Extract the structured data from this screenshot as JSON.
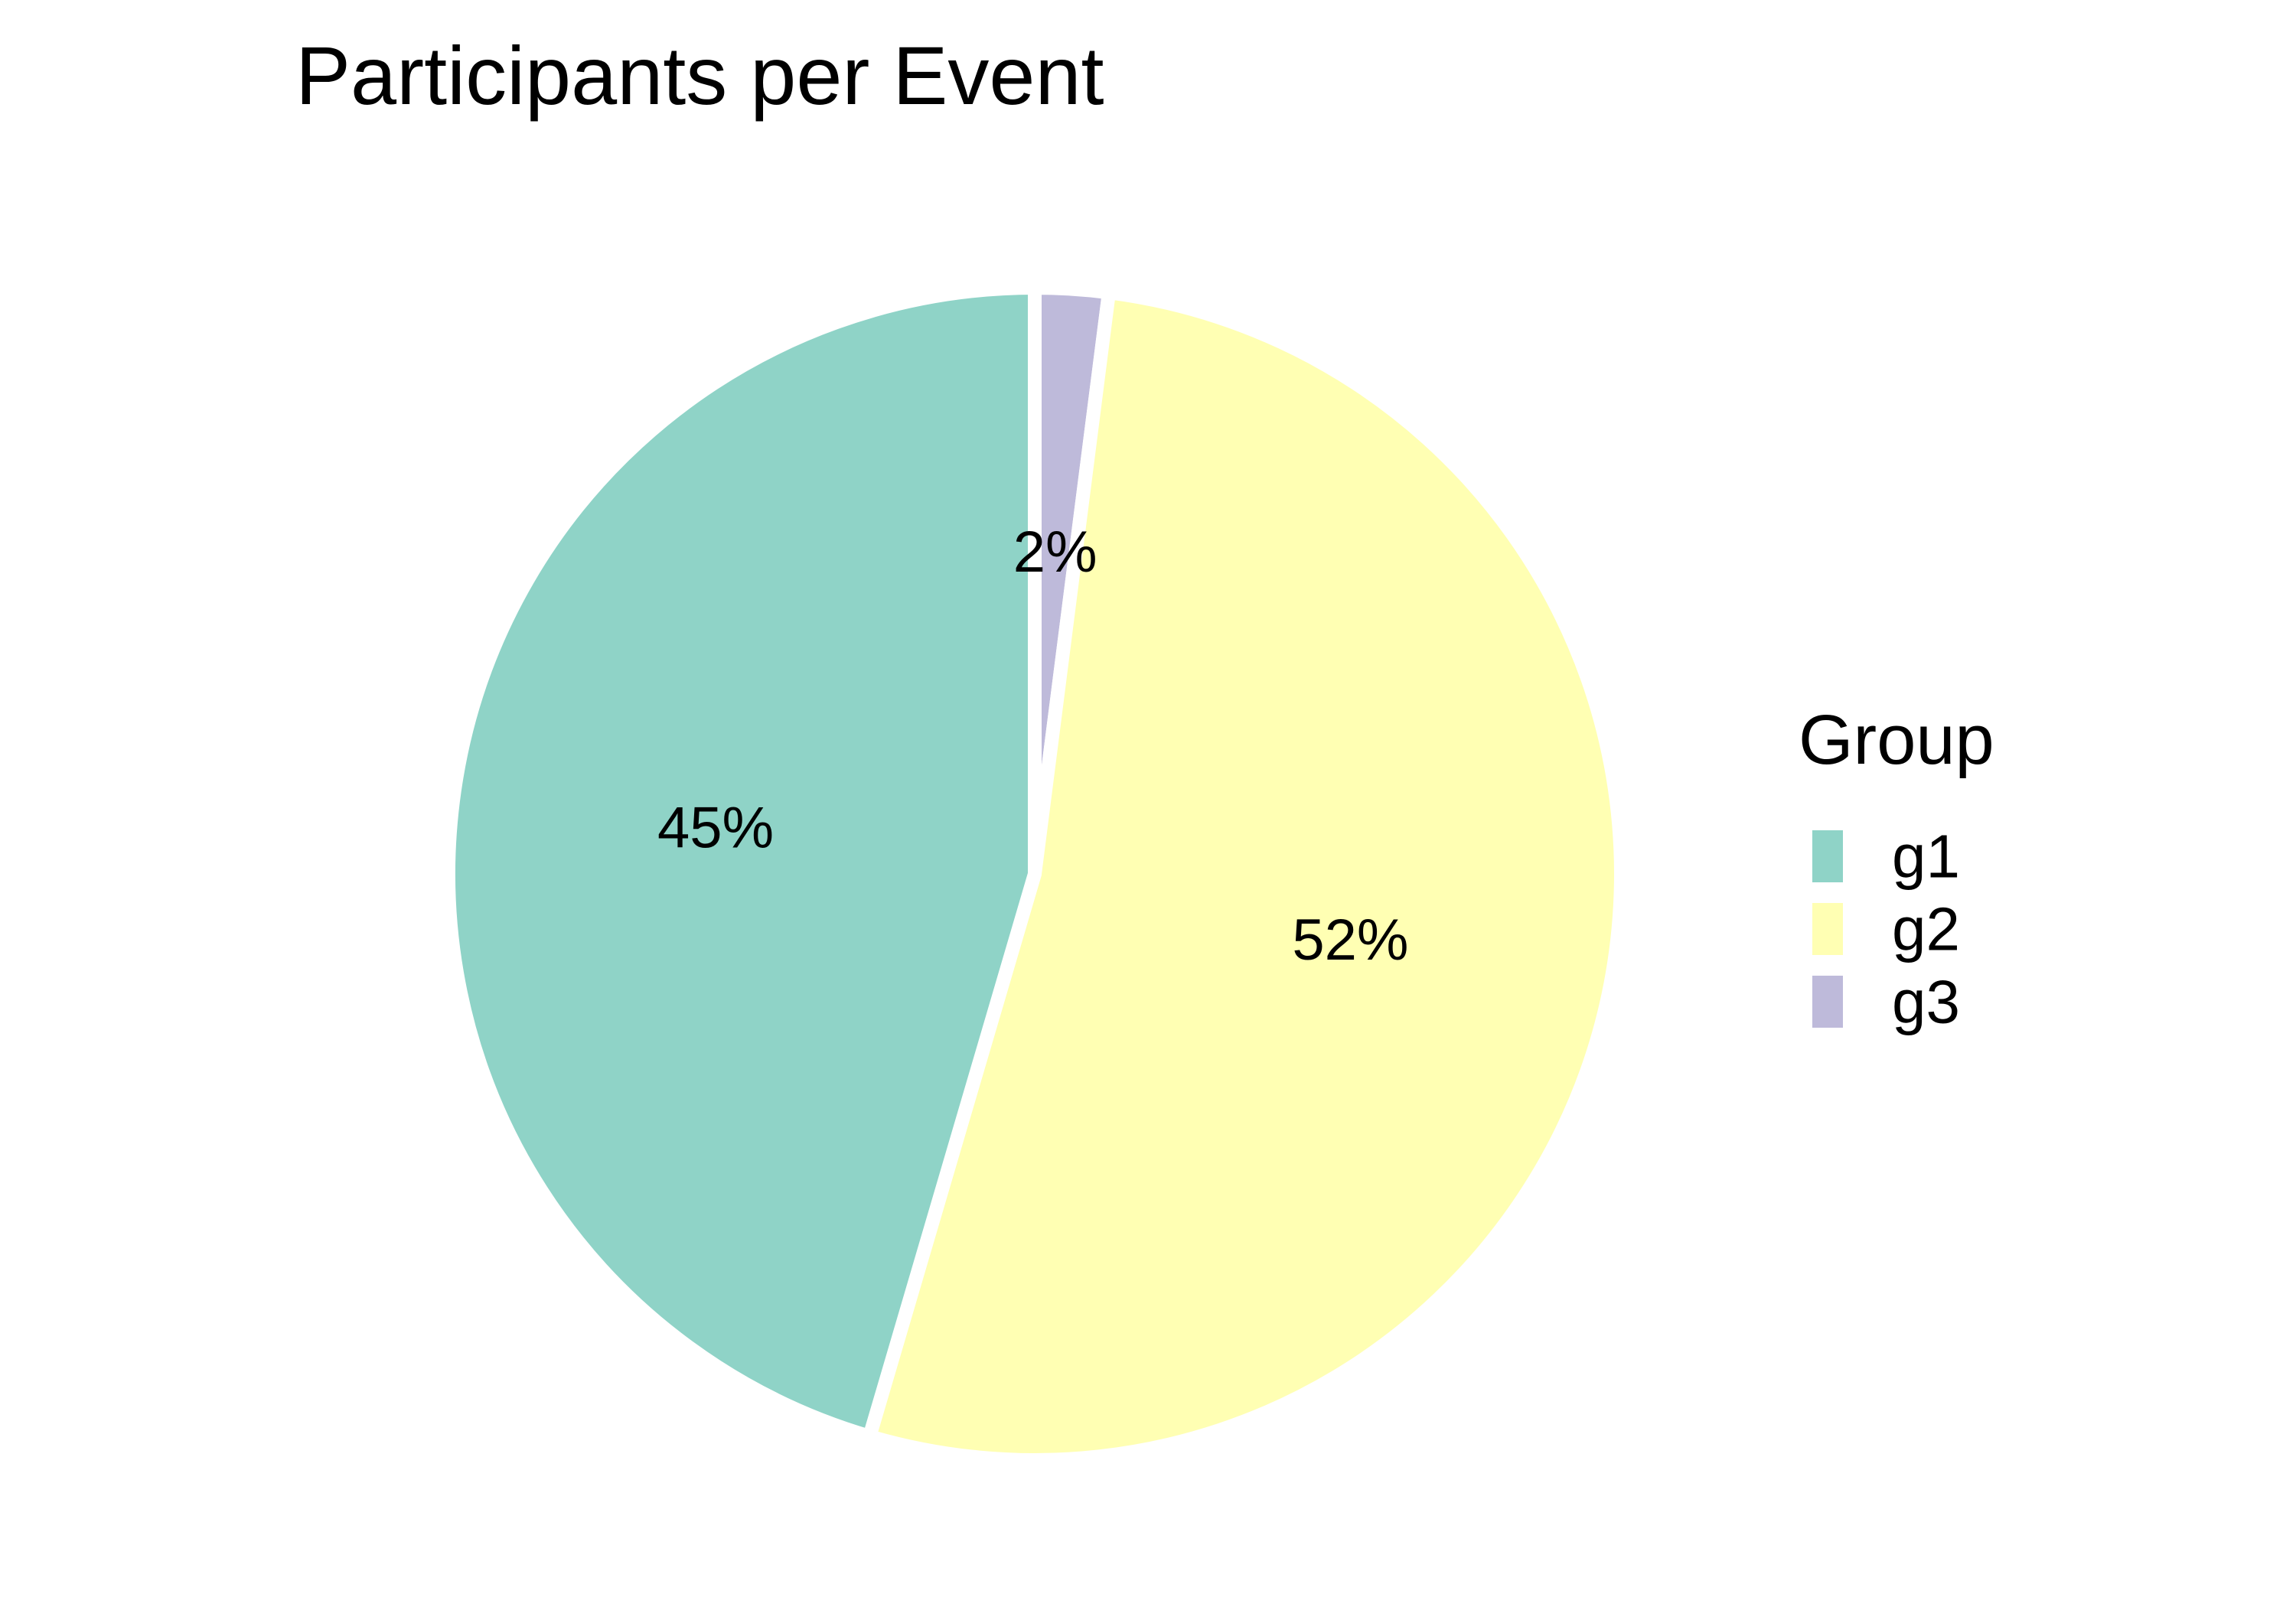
{
  "chart_data": {
    "type": "pie",
    "title": "Participants per Event",
    "legend_title": "Group",
    "legend_position": "right",
    "start": "top",
    "direction": "clockwise",
    "slices": [
      {
        "name": "g1",
        "value": 45,
        "label": "45%",
        "color": "#8fd3c7"
      },
      {
        "name": "g2",
        "value": 52,
        "label": "52%",
        "color": "#ffffb3"
      },
      {
        "name": "g3",
        "value": 2,
        "label": "2%",
        "color": "#bebada"
      }
    ],
    "draw_order": [
      "g3",
      "g2",
      "g1"
    ],
    "slice_border_color": "#ffffff"
  }
}
